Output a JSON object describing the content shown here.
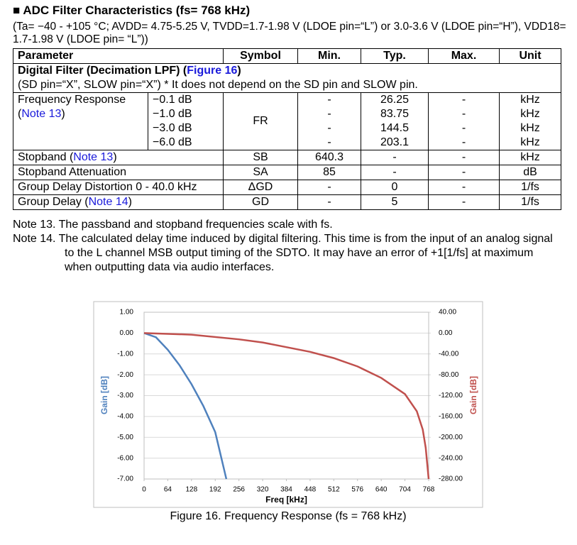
{
  "header": {
    "title": "■ ADC Filter Characteristics (fs= 768 kHz)",
    "conditions": "(Ta= −40 - +105 °C; AVDD= 4.75-5.25 V, TVDD=1.7-1.98 V (LDOE pin=“L”) or 3.0-3.6 V (LDOE pin=“H”), VDD18= 1.7-1.98 V (LDOE pin= “L”))"
  },
  "table": {
    "columns": [
      "Parameter",
      "Symbol",
      "Min.",
      "Typ.",
      "Max.",
      "Unit"
    ],
    "section": {
      "title": [
        "Digital Filter (Decimation LPF) (",
        "Figure 16",
        ")"
      ],
      "note": "(SD pin=“X”, SLOW pin=“X”)  * It does not depend on the SD pin and SLOW pin."
    },
    "frequency_response": {
      "parameter": [
        "Frequency Response\n(",
        "Note 13",
        ")"
      ],
      "levels": [
        "−0.1 dB",
        "−1.0 dB",
        "−3.0 dB",
        "−6.0 dB"
      ],
      "symbol": "FR",
      "min": [
        "-",
        "-",
        "-",
        "-"
      ],
      "typ": [
        "26.25",
        "83.75",
        "144.5",
        "203.1"
      ],
      "max": [
        "-",
        "-",
        "-",
        "-"
      ],
      "unit": [
        "kHz",
        "kHz",
        "kHz",
        "kHz"
      ]
    },
    "rows": [
      {
        "parameter": [
          "Stopband  (",
          "Note 13",
          ")"
        ],
        "symbol": "SB",
        "min": "640.3",
        "typ": "-",
        "max": "-",
        "unit": "kHz"
      },
      {
        "parameter": [
          "Stopband Attenuation"
        ],
        "symbol": "SA",
        "min": "85",
        "typ": "-",
        "max": "-",
        "unit": "dB"
      },
      {
        "parameter": [
          "Group Delay Distortion 0 - 40.0 kHz"
        ],
        "symbol": "ΔGD",
        "min": "-",
        "typ": "0",
        "max": "-",
        "unit": "1/fs"
      },
      {
        "parameter": [
          "Group Delay   (",
          "Note 14",
          ")"
        ],
        "symbol": "GD",
        "min": "-",
        "typ": "5",
        "max": "-",
        "unit": "1/fs"
      }
    ]
  },
  "notes": [
    "Note 13. The passband and stopband frequencies scale with fs.",
    "Note 14. The calculated delay time induced by digital filtering. This time is from the input of an analog signal to the L channel MSB output timing of the SDTO. It may have an error of +1[1/fs] at maximum when outputting data via audio interfaces."
  ],
  "chart_data": {
    "type": "line",
    "caption": "Figure 16. Frequency Response (fs = 768 kHz)",
    "xlabel": "Freq [kHz]",
    "ylabel": "Gain [dB]",
    "y2label": "Gain [dB]",
    "xlim": [
      0,
      768
    ],
    "xticks": [
      0,
      64,
      128,
      192,
      256,
      320,
      384,
      448,
      512,
      576,
      640,
      704,
      768
    ],
    "ylim": [
      -7,
      1
    ],
    "yticks": [
      {
        "value": 1,
        "label": "1.00"
      },
      {
        "value": 0,
        "label": "0.00"
      },
      {
        "value": -1,
        "label": "-1.00"
      },
      {
        "value": -2,
        "label": "-2.00"
      },
      {
        "value": -3,
        "label": "-3.00"
      },
      {
        "value": -4,
        "label": "-4.00"
      },
      {
        "value": -5,
        "label": "-5.00"
      },
      {
        "value": -6,
        "label": "-6.00"
      },
      {
        "value": -7,
        "label": "-7.00"
      }
    ],
    "y2lim": [
      -280,
      40
    ],
    "y2ticks": [
      {
        "value": 40,
        "label": "40.00"
      },
      {
        "value": 0,
        "label": "0.00"
      },
      {
        "value": -40,
        "label": "-40.00"
      },
      {
        "value": -80,
        "label": "-80.00"
      },
      {
        "value": -120,
        "label": "-120.00"
      },
      {
        "value": -160,
        "label": "-160.00"
      },
      {
        "value": -200,
        "label": "-200.00"
      },
      {
        "value": -240,
        "label": "-240.00"
      },
      {
        "value": -280,
        "label": "-280.00"
      }
    ],
    "grid": true,
    "series": [
      {
        "color": "#4f81bd",
        "x": [
          0,
          32,
          64,
          96,
          128,
          160,
          192,
          222
        ],
        "values": [
          0,
          -0.2,
          -0.8,
          -1.55,
          -2.45,
          -3.5,
          -4.75,
          -7
        ]
      },
      {
        "color": "#c0504d",
        "axis": "y2",
        "x": [
          0,
          128,
          256,
          320,
          384,
          448,
          512,
          576,
          640,
          704,
          736,
          752,
          760,
          768
        ],
        "values": [
          0,
          -3,
          -12,
          -18,
          -27,
          -36,
          -48,
          -64,
          -86,
          -117,
          -150,
          -185,
          -220,
          -280
        ]
      }
    ]
  }
}
